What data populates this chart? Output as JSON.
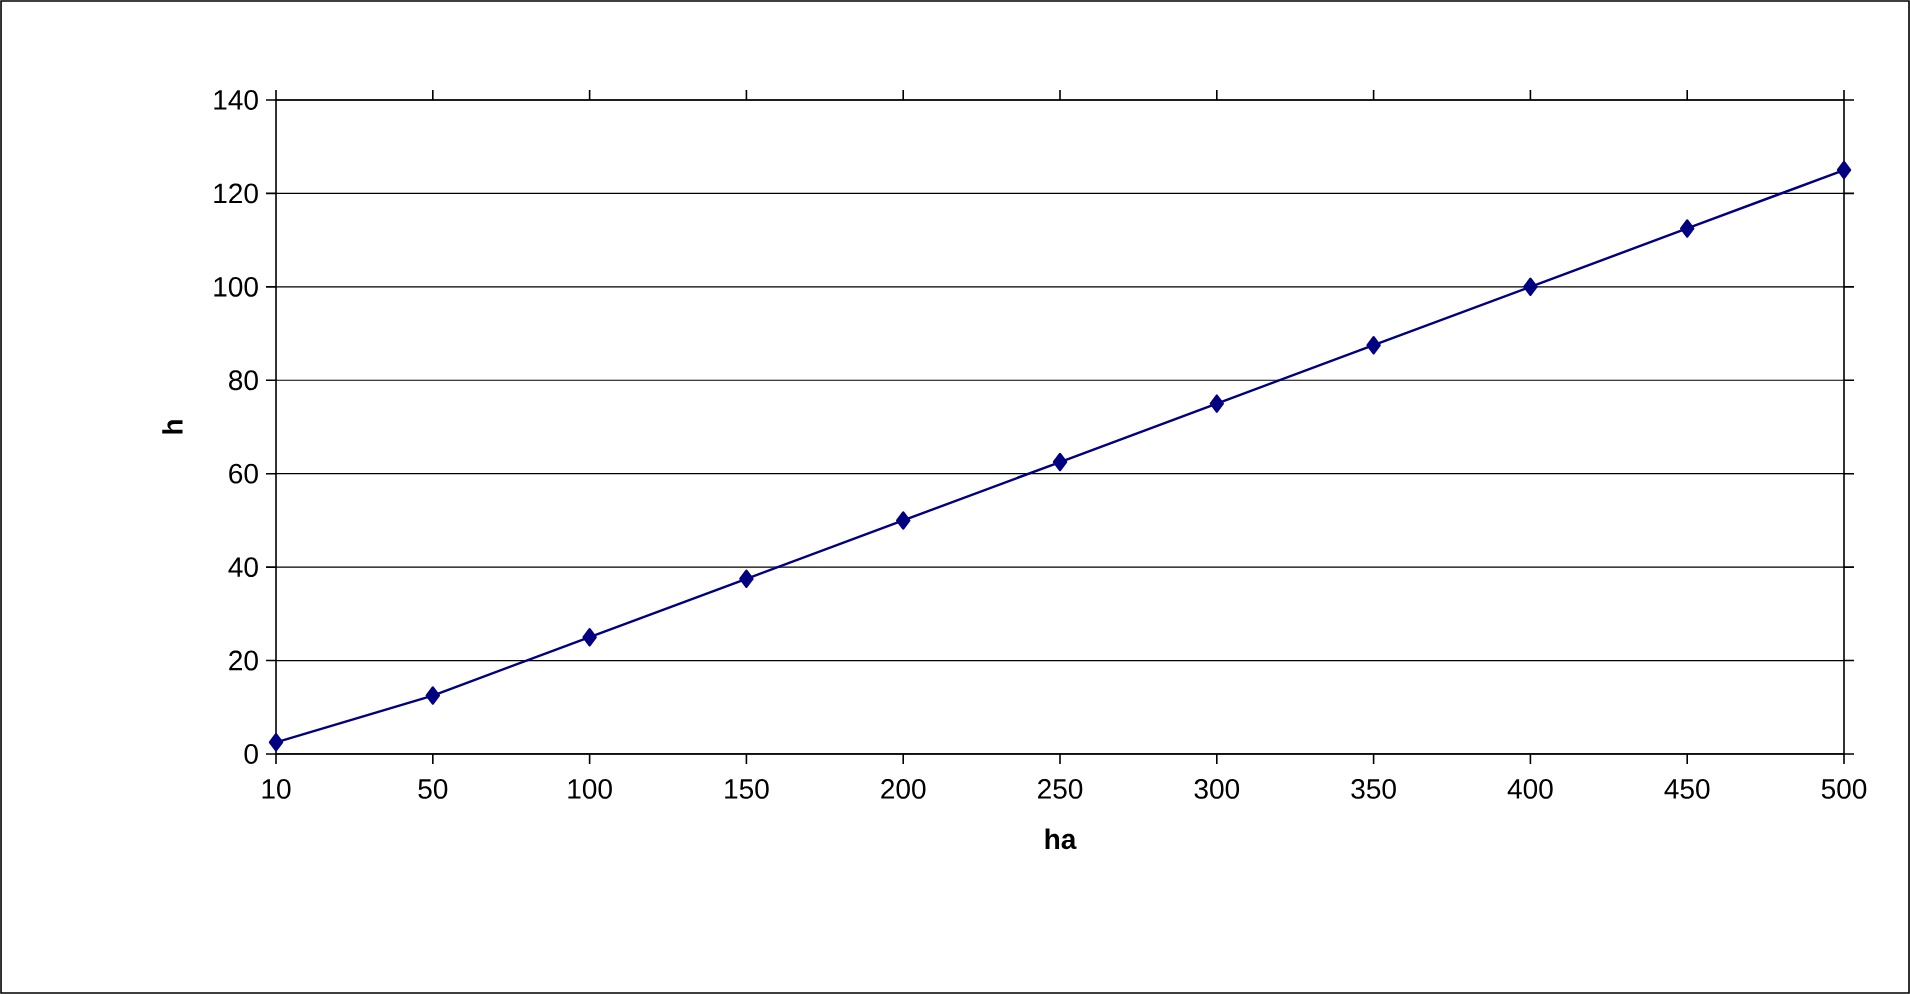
{
  "chart_data": {
    "type": "line",
    "xlabel": "ha",
    "ylabel": "h",
    "categories": [
      "10",
      "50",
      "100",
      "150",
      "200",
      "250",
      "300",
      "350",
      "400",
      "450",
      "500"
    ],
    "series": [
      {
        "color": "#000080",
        "values": [
          2.5,
          12.5,
          25,
          37.5,
          50,
          62.5,
          75,
          87.5,
          100,
          112.5,
          125
        ]
      }
    ],
    "ylim": [
      0,
      140
    ],
    "yticks": [
      0,
      20,
      40,
      60,
      80,
      100,
      120,
      140
    ],
    "grid": "y",
    "marker": "diamond",
    "line_style": "solid"
  }
}
